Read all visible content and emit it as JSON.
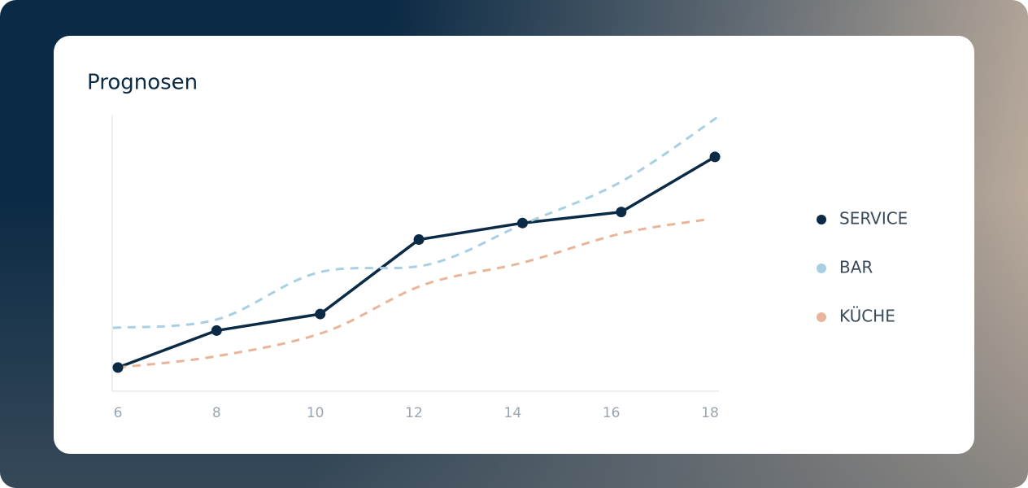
{
  "chart_data": {
    "type": "line",
    "title": "Prognosen",
    "xlim": [
      6,
      18
    ],
    "xticks": [
      6,
      8,
      10,
      12,
      14,
      16,
      18
    ],
    "ylim": [
      0,
      100
    ],
    "grid": false,
    "legend": "right",
    "series": [
      {
        "name": "SERVICE",
        "color": "#0b2a45",
        "dashed": false,
        "markers": true,
        "x": [
          6,
          8,
          10.1,
          12.1,
          14.2,
          16.2,
          18.1
        ],
        "values": [
          8.6,
          22,
          28,
          55,
          61,
          65,
          85
        ]
      },
      {
        "name": "BAR",
        "color": "#a9cfe2",
        "dashed": true,
        "markers": false,
        "x": [
          5.9,
          8,
          10.05,
          12.3,
          14.2,
          16.2,
          18.2
        ],
        "values": [
          23,
          26,
          43,
          46,
          60.5,
          76,
          100
        ]
      },
      {
        "name": "KÜCHE",
        "color": "#e8b59a",
        "dashed": true,
        "markers": false,
        "x": [
          6,
          8,
          10.2,
          12.2,
          14.2,
          16.2,
          17.9
        ],
        "values": [
          8.6,
          12.7,
          21.5,
          38.6,
          46.6,
          57.2,
          62.2
        ]
      }
    ]
  }
}
